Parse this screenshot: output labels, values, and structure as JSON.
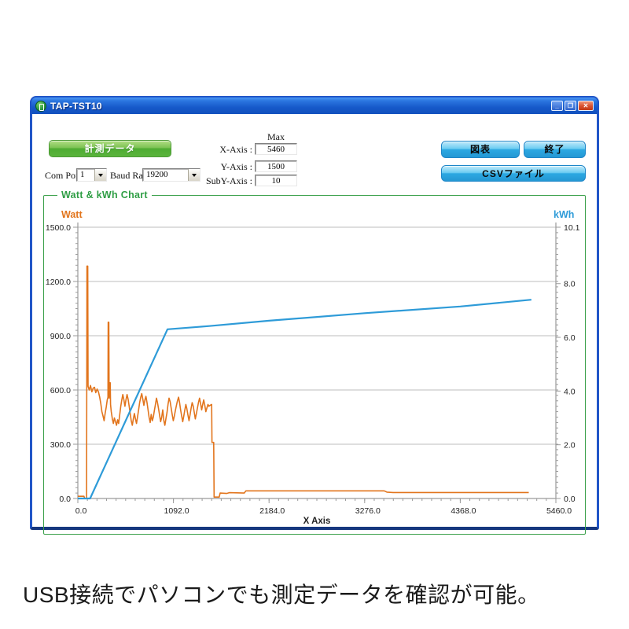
{
  "window": {
    "title": "TAP-TST10",
    "controls": {
      "minimize": "_",
      "maximize": "❐",
      "close": "✕"
    }
  },
  "toolbar": {
    "measure_label": "計測データ",
    "chart_label": "図表",
    "exit_label": "終了",
    "csv_label": "CSVファイル"
  },
  "settings": {
    "com_port_label": "Com Port",
    "com_port_value": "1",
    "baud_rate_label": "Baud Rate",
    "baud_rate_value": "19200",
    "max_label": "Max",
    "rows": [
      {
        "label": "X-Axis :",
        "value": "5460"
      },
      {
        "label": "Y-Axis :",
        "value": "1500"
      },
      {
        "label": "SubY-Axis :",
        "value": "10"
      }
    ]
  },
  "caption": {
    "text": "USB接続でパソコンでも測定データを確認が可能。"
  },
  "chart_data": {
    "type": "line",
    "title": "Watt & kWh Chart",
    "xlabel": "X Axis",
    "x_max": 5460,
    "x_ticks": [
      "0.0",
      "1092.0",
      "2184.0",
      "3276.0",
      "4368.0",
      "5460.0"
    ],
    "x_minor_step": 109.2,
    "grid_values": [
      300,
      600,
      900,
      1200,
      1500
    ],
    "left_axis": {
      "label": "Watt",
      "color": "#E2751D",
      "max": 1500,
      "ticks": [
        "0.0",
        "300.0",
        "600.0",
        "900.0",
        "1200.0",
        "1500.0"
      ],
      "minor_step": 30
    },
    "right_axis": {
      "label": "kWh",
      "color": "#2E9BD8",
      "max": 10.1,
      "ticks": [
        "0.0",
        "2.0",
        "4.0",
        "6.0",
        "8.0",
        "10.1"
      ],
      "minor_step": 0.202
    },
    "grid_color": "#BDBDBD",
    "axis_color": "#9A9A9A",
    "series": [
      {
        "name": "Watt",
        "axis": "left",
        "color": "#E2751D",
        "points": [
          [
            0,
            12
          ],
          [
            70,
            12
          ],
          [
            78,
            0
          ],
          [
            100,
            0
          ],
          [
            104,
            1285
          ],
          [
            113,
            1285
          ],
          [
            117,
            620
          ],
          [
            130,
            600
          ],
          [
            145,
            625
          ],
          [
            160,
            590
          ],
          [
            175,
            610
          ],
          [
            190,
            615
          ],
          [
            205,
            585
          ],
          [
            220,
            605
          ],
          [
            235,
            590
          ],
          [
            250,
            560
          ],
          [
            262,
            525
          ],
          [
            275,
            480
          ],
          [
            288,
            455
          ],
          [
            300,
            430
          ],
          [
            312,
            470
          ],
          [
            324,
            505
          ],
          [
            336,
            545
          ],
          [
            344,
            560
          ],
          [
            347,
            975
          ],
          [
            354,
            975
          ],
          [
            357,
            555
          ],
          [
            363,
            640
          ],
          [
            370,
            640
          ],
          [
            374,
            520
          ],
          [
            382,
            480
          ],
          [
            394,
            440
          ],
          [
            406,
            415
          ],
          [
            418,
            445
          ],
          [
            430,
            425
          ],
          [
            442,
            405
          ],
          [
            454,
            435
          ],
          [
            466,
            415
          ],
          [
            478,
            460
          ],
          [
            490,
            510
          ],
          [
            502,
            545
          ],
          [
            514,
            575
          ],
          [
            526,
            545
          ],
          [
            538,
            510
          ],
          [
            550,
            545
          ],
          [
            562,
            575
          ],
          [
            574,
            550
          ],
          [
            586,
            510
          ],
          [
            598,
            470
          ],
          [
            610,
            430
          ],
          [
            622,
            405
          ],
          [
            634,
            440
          ],
          [
            646,
            470
          ],
          [
            658,
            440
          ],
          [
            670,
            415
          ],
          [
            682,
            450
          ],
          [
            694,
            490
          ],
          [
            706,
            530
          ],
          [
            718,
            560
          ],
          [
            730,
            580
          ],
          [
            742,
            550
          ],
          [
            754,
            515
          ],
          [
            766,
            545
          ],
          [
            778,
            565
          ],
          [
            790,
            530
          ],
          [
            802,
            490
          ],
          [
            814,
            450
          ],
          [
            826,
            420
          ],
          [
            838,
            465
          ],
          [
            850,
            430
          ],
          [
            862,
            450
          ],
          [
            874,
            485
          ],
          [
            886,
            520
          ],
          [
            898,
            555
          ],
          [
            910,
            530
          ],
          [
            922,
            495
          ],
          [
            934,
            460
          ],
          [
            946,
            425
          ],
          [
            958,
            450
          ],
          [
            970,
            490
          ],
          [
            982,
            430
          ],
          [
            994,
            405
          ],
          [
            1006,
            440
          ],
          [
            1018,
            475
          ],
          [
            1030,
            520
          ],
          [
            1042,
            555
          ],
          [
            1054,
            535
          ],
          [
            1066,
            500
          ],
          [
            1078,
            465
          ],
          [
            1090,
            430
          ],
          [
            1102,
            455
          ],
          [
            1114,
            485
          ],
          [
            1126,
            515
          ],
          [
            1138,
            540
          ],
          [
            1150,
            560
          ],
          [
            1162,
            530
          ],
          [
            1174,
            490
          ],
          [
            1186,
            455
          ],
          [
            1198,
            425
          ],
          [
            1210,
            455
          ],
          [
            1222,
            490
          ],
          [
            1234,
            520
          ],
          [
            1246,
            495
          ],
          [
            1258,
            460
          ],
          [
            1270,
            430
          ],
          [
            1282,
            465
          ],
          [
            1294,
            500
          ],
          [
            1306,
            530
          ],
          [
            1318,
            510
          ],
          [
            1330,
            475
          ],
          [
            1342,
            440
          ],
          [
            1354,
            470
          ],
          [
            1366,
            500
          ],
          [
            1378,
            530
          ],
          [
            1390,
            555
          ],
          [
            1402,
            525
          ],
          [
            1414,
            490
          ],
          [
            1426,
            520
          ],
          [
            1438,
            545
          ],
          [
            1450,
            515
          ],
          [
            1462,
            480
          ],
          [
            1474,
            500
          ],
          [
            1486,
            520
          ],
          [
            1498,
            510
          ],
          [
            1510,
            515
          ],
          [
            1528,
            520
          ],
          [
            1532,
            310
          ],
          [
            1552,
            310
          ],
          [
            1556,
            8
          ],
          [
            1615,
            8
          ],
          [
            1625,
            30
          ],
          [
            1700,
            28
          ],
          [
            1730,
            32
          ],
          [
            1900,
            30
          ],
          [
            1920,
            42
          ],
          [
            2100,
            42
          ],
          [
            2600,
            42
          ],
          [
            3100,
            42
          ],
          [
            3500,
            42
          ],
          [
            3530,
            35
          ],
          [
            3600,
            33
          ],
          [
            4000,
            33
          ],
          [
            4500,
            33
          ],
          [
            5000,
            33
          ],
          [
            5150,
            33
          ]
        ]
      },
      {
        "name": "kWh",
        "axis": "right",
        "color": "#2E9BD8",
        "points": [
          [
            0,
            0
          ],
          [
            140,
            0
          ],
          [
            1024,
            6.3
          ],
          [
            1500,
            6.42
          ],
          [
            2184,
            6.62
          ],
          [
            3276,
            6.9
          ],
          [
            4368,
            7.15
          ],
          [
            5180,
            7.4
          ]
        ]
      }
    ]
  }
}
